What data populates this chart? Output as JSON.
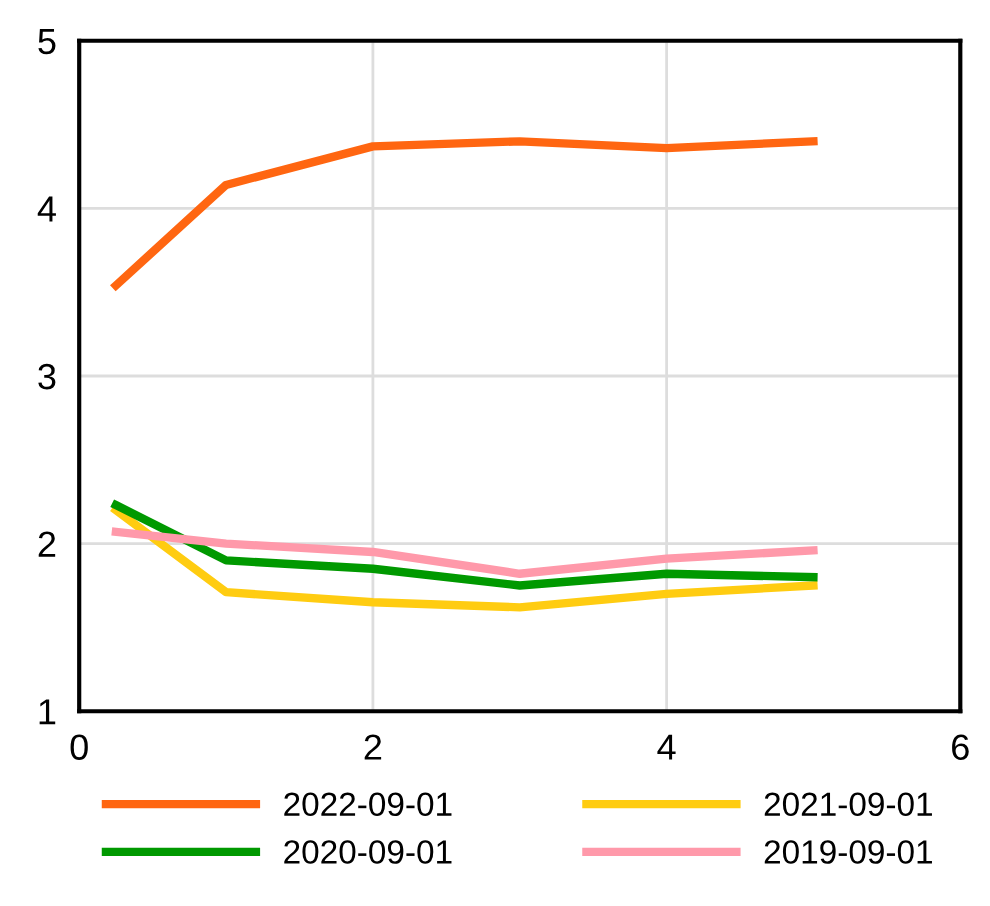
{
  "chart_data": {
    "type": "line",
    "xlim": [
      0,
      6
    ],
    "xticks": [
      0,
      2,
      4,
      6
    ],
    "ylim": [
      1,
      5
    ],
    "yticks": [
      1,
      2,
      3,
      4,
      5
    ],
    "grid": true,
    "legend": "bottom",
    "marker": "none",
    "line_style": "solid",
    "x": [
      0.25,
      1,
      2,
      3,
      4,
      5
    ],
    "series": [
      {
        "name": "2022-09-01",
        "color": "#ff6611",
        "values": [
          3.54,
          4.14,
          4.37,
          4.4,
          4.36,
          4.4
        ]
      },
      {
        "name": "2021-09-01",
        "color": "#ffcc11",
        "values": [
          2.2,
          1.71,
          1.65,
          1.62,
          1.7,
          1.75
        ]
      },
      {
        "name": "2020-09-01",
        "color": "#009900",
        "values": [
          2.23,
          1.9,
          1.85,
          1.75,
          1.82,
          1.8
        ]
      },
      {
        "name": "2019-09-01",
        "color": "#ff99aa",
        "values": [
          2.07,
          2.0,
          1.95,
          1.82,
          1.91,
          1.96
        ]
      }
    ]
  }
}
